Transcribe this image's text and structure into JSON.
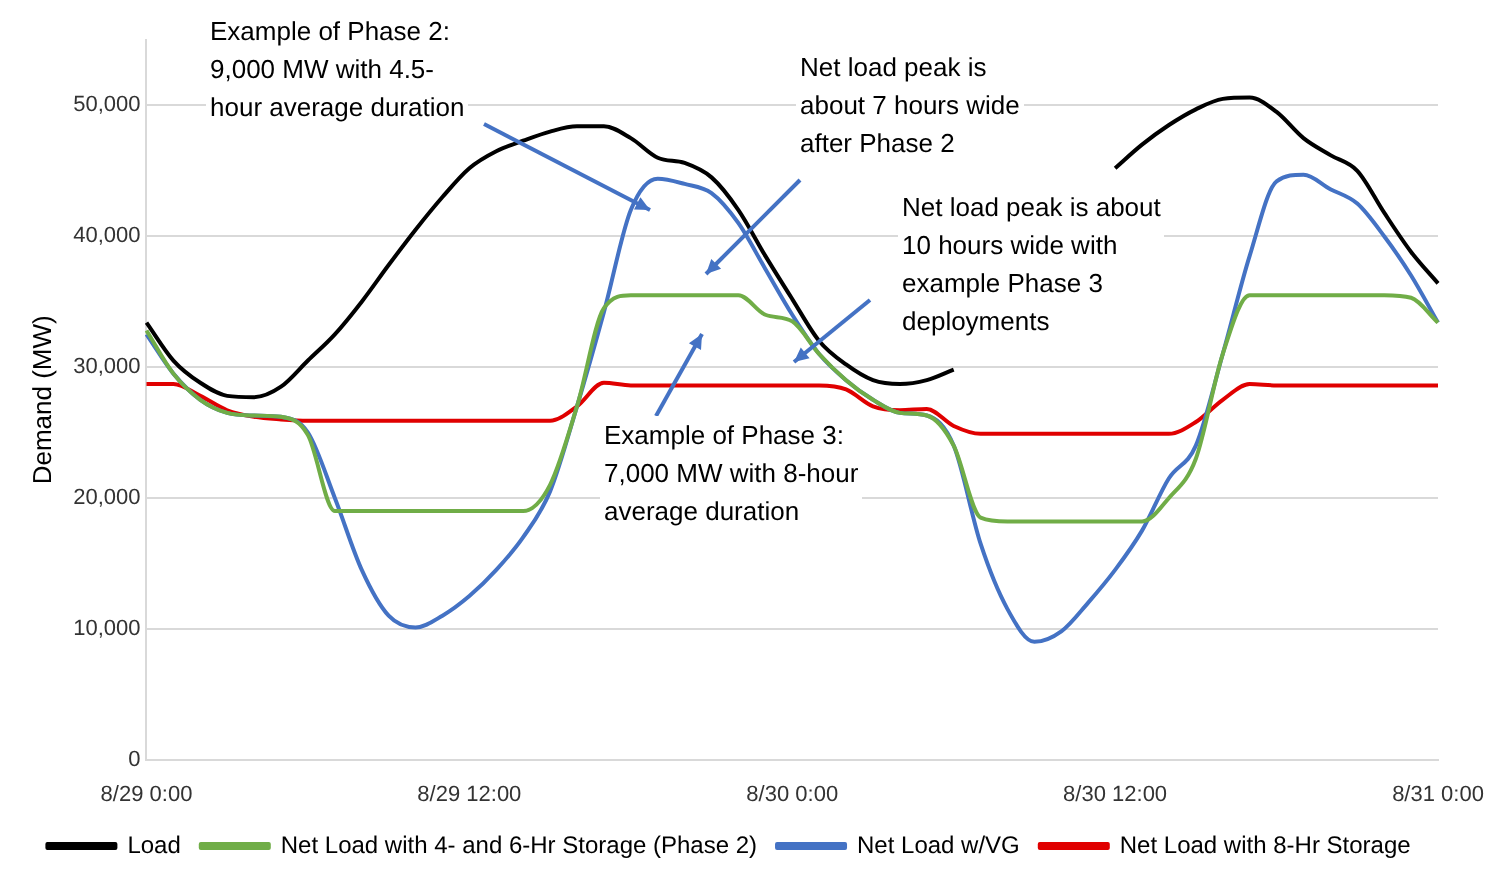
{
  "chart_data": {
    "type": "line",
    "ylabel": "Demand (MW)",
    "categories": [
      "8/29 0:00",
      null,
      null,
      null,
      null,
      null,
      null,
      null,
      null,
      null,
      null,
      null,
      "8/29 12:00",
      null,
      null,
      null,
      null,
      null,
      null,
      null,
      null,
      null,
      null,
      null,
      "8/30 0:00",
      null,
      null,
      null,
      null,
      null,
      null,
      null,
      null,
      null,
      null,
      null,
      "8/30 12:00",
      null,
      null,
      null,
      null,
      null,
      null,
      null,
      null,
      null,
      null,
      null,
      "8/31 0:00"
    ],
    "ylim": [
      0,
      55000
    ],
    "yticks": [
      {
        "value": 0,
        "label": "0"
      },
      {
        "value": 10000,
        "label": "10,000"
      },
      {
        "value": 20000,
        "label": "20,000"
      },
      {
        "value": 30000,
        "label": "30,000"
      },
      {
        "value": 40000,
        "label": "40,000"
      },
      {
        "value": 50000,
        "label": "50,000"
      }
    ],
    "grid": "y",
    "legend": "bottom",
    "marker": "none",
    "line_style": "solid",
    "series": [
      {
        "name": "Load",
        "color": "#000000",
        "values": [
          33400,
          30500,
          28800,
          27800,
          27700,
          28500,
          30500,
          32500,
          35000,
          37800,
          40500,
          43000,
          45200,
          46500,
          47300,
          48000,
          48400,
          48400,
          47500,
          46000,
          45600,
          44500,
          42000,
          38500,
          35200,
          32000,
          30200,
          29000,
          28700,
          29000,
          29800,
          null,
          null,
          null,
          null,
          null,
          45200,
          47000,
          48500,
          49700,
          50500,
          50600,
          49500,
          47500,
          46200,
          45000,
          41800,
          38800,
          36400
        ]
      },
      {
        "name": "Net Load with 4- and 6-Hr Storage (Phase 2)",
        "color": "#70ad47",
        "values": [
          32800,
          29500,
          27500,
          26500,
          26300,
          26200,
          24800,
          19000,
          19000,
          19000,
          19000,
          19000,
          19000,
          19000,
          19000,
          21000,
          27000,
          34500,
          35500,
          35500,
          35500,
          35500,
          35500,
          34000,
          33500,
          31000,
          29000,
          27500,
          26500,
          26300,
          24000,
          18500,
          18200,
          18200,
          18200,
          18200,
          18200,
          18200,
          20000,
          23000,
          31000,
          35500,
          35500,
          35500,
          35500,
          35500,
          35500,
          35300,
          33400
        ]
      },
      {
        "name": "Net Load w/VG",
        "color": "#4472c4",
        "values": [
          32500,
          29500,
          27500,
          26500,
          26300,
          26200,
          25000,
          20000,
          14500,
          11000,
          10100,
          11000,
          12500,
          14500,
          17000,
          20500,
          27000,
          34200,
          42000,
          44400,
          44000,
          43300,
          41000,
          37500,
          34000,
          31000,
          29000,
          27500,
          26500,
          26300,
          24000,
          16500,
          11500,
          9000,
          9800,
          12000,
          14500,
          17500,
          21500,
          24000,
          31000,
          38500,
          44200,
          44700,
          43600,
          42500,
          40000,
          37000,
          33400
        ]
      },
      {
        "name": "Net Load with 8-Hr Storage",
        "color": "#e00000",
        "values": [
          28700,
          28700,
          27800,
          26700,
          26200,
          26000,
          25900,
          25900,
          25900,
          25900,
          25900,
          25900,
          25900,
          25900,
          25900,
          25900,
          27000,
          28800,
          28600,
          28600,
          28600,
          28600,
          28600,
          28600,
          28600,
          28600,
          28300,
          27000,
          26700,
          26800,
          25500,
          24900,
          24900,
          24900,
          24900,
          24900,
          24900,
          24900,
          24900,
          25800,
          27500,
          28700,
          28600,
          28600,
          28600,
          28600,
          28600,
          28600,
          28600
        ]
      }
    ],
    "annotations": [
      "Example of Phase 2:\n9,000 MW with 4.5-\nhour average duration",
      "Net load peak is\nabout 7 hours wide\nafter Phase 2",
      "Net load peak is about\n10 hours wide with\nexample Phase 3\ndeployments",
      "Example of Phase 3:\n7,000 MW with 8-hour\naverage duration"
    ]
  }
}
